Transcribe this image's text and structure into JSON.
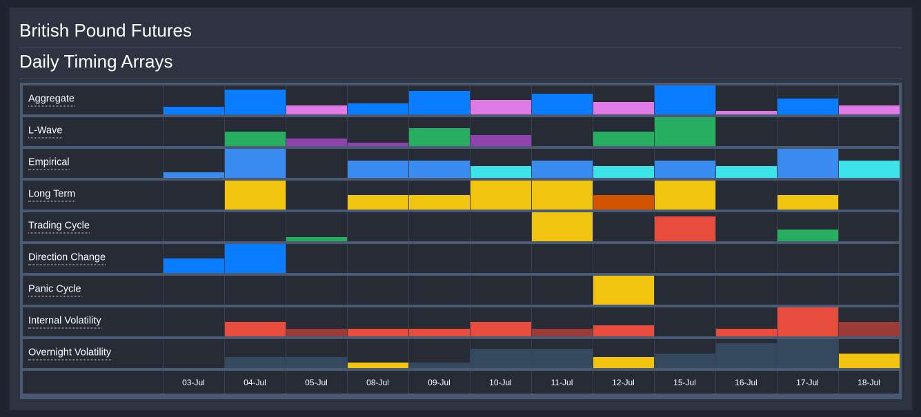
{
  "page": {
    "title": "British Pound Futures",
    "subtitle": "Daily Timing Arrays"
  },
  "chart_data": {
    "type": "heatmap",
    "title": "British Pound Futures",
    "subtitle": "Daily Timing Arrays",
    "categories": [
      "03-Jul",
      "04-Jul",
      "05-Jul",
      "08-Jul",
      "09-Jul",
      "10-Jul",
      "11-Jul",
      "12-Jul",
      "15-Jul",
      "16-Jul",
      "17-Jul",
      "18-Jul"
    ],
    "ylim": [
      0,
      1
    ],
    "series": [
      {
        "name": "Aggregate",
        "values": [
          0.25,
          0.85,
          0.3,
          0.37,
          0.8,
          0.5,
          0.72,
          0.43,
          1.0,
          0.13,
          0.55,
          0.3
        ],
        "colors": [
          "#0a7cff",
          "#0a7cff",
          "#e07ae6",
          "#0a7cff",
          "#0a7cff",
          "#e07ae6",
          "#0a7cff",
          "#e07ae6",
          "#0a7cff",
          "#e07ae6",
          "#0a7cff",
          "#e07ae6"
        ]
      },
      {
        "name": "L-Wave",
        "values": [
          0,
          0.5,
          0.25,
          0.12,
          0.62,
          0.37,
          0,
          0.5,
          1.0,
          0,
          0,
          0
        ],
        "colors": [
          "#262b36",
          "#27ae60",
          "#8e44ad",
          "#8e44ad",
          "#27ae60",
          "#8e44ad",
          "#262b36",
          "#27ae60",
          "#27ae60",
          "#262b36",
          "#262b36",
          "#262b36"
        ]
      },
      {
        "name": "Empirical",
        "values": [
          0.2,
          1.0,
          0,
          0.6,
          0.6,
          0.4,
          0.6,
          0.4,
          0.6,
          0.4,
          1.0,
          0.6
        ],
        "colors": [
          "#3b8cf0",
          "#3b8cf0",
          "#262b36",
          "#3b8cf0",
          "#3b8cf0",
          "#3ce3e8",
          "#3b8cf0",
          "#3ce3e8",
          "#3b8cf0",
          "#3ce3e8",
          "#3b8cf0",
          "#3ce3e8"
        ]
      },
      {
        "name": "Long Term",
        "values": [
          0,
          1.0,
          0,
          0.5,
          0.5,
          1.0,
          1.0,
          0.5,
          1.0,
          0,
          0.5,
          0
        ],
        "colors": [
          "#262b36",
          "#f1c40f",
          "#262b36",
          "#f1c40f",
          "#f1c40f",
          "#f1c40f",
          "#f1c40f",
          "#d35400",
          "#f1c40f",
          "#262b36",
          "#f1c40f",
          "#262b36"
        ]
      },
      {
        "name": "Trading Cycle",
        "values": [
          0,
          0,
          0.15,
          0,
          0,
          0,
          1.0,
          0,
          0.85,
          0,
          0.4,
          0
        ],
        "colors": [
          "#262b36",
          "#262b36",
          "#27ae60",
          "#262b36",
          "#262b36",
          "#262b36",
          "#f1c40f",
          "#262b36",
          "#e74c3c",
          "#262b36",
          "#27ae60",
          "#262b36"
        ]
      },
      {
        "name": "Direction Change",
        "values": [
          0.5,
          1.0,
          0,
          0,
          0,
          0,
          0,
          0,
          0,
          0,
          0,
          0
        ],
        "colors": [
          "#0a7cff",
          "#0a7cff",
          "#262b36",
          "#262b36",
          "#262b36",
          "#262b36",
          "#262b36",
          "#262b36",
          "#262b36",
          "#262b36",
          "#262b36",
          "#262b36"
        ]
      },
      {
        "name": "Panic Cycle",
        "values": [
          0,
          0,
          0,
          0,
          0,
          0,
          0,
          1.0,
          0,
          0,
          0,
          0
        ],
        "colors": [
          "#262b36",
          "#262b36",
          "#262b36",
          "#262b36",
          "#262b36",
          "#262b36",
          "#262b36",
          "#f1c40f",
          "#262b36",
          "#262b36",
          "#262b36",
          "#262b36"
        ]
      },
      {
        "name": "Internal Volatility",
        "values": [
          0,
          0.5,
          0.25,
          0.25,
          0.25,
          0.5,
          0.25,
          0.37,
          0,
          0.25,
          1.0,
          0.5
        ],
        "colors": [
          "#262b36",
          "#e74c3c",
          "#9b3a36",
          "#e74c3c",
          "#e74c3c",
          "#e74c3c",
          "#9b3a36",
          "#e74c3c",
          "#262b36",
          "#e74c3c",
          "#e74c3c",
          "#9b3a36"
        ]
      },
      {
        "name": "Overnight Volatility",
        "values": [
          0,
          0.37,
          0.37,
          0.2,
          0.2,
          0.67,
          0.67,
          0.37,
          0.5,
          0.85,
          1.0,
          0.5
        ],
        "colors": [
          "#262b36",
          "#34495e",
          "#34495e",
          "#f1c40f",
          "#34495e",
          "#34495e",
          "#34495e",
          "#f1c40f",
          "#34495e",
          "#34495e",
          "#34495e",
          "#f1c40f"
        ]
      }
    ]
  }
}
